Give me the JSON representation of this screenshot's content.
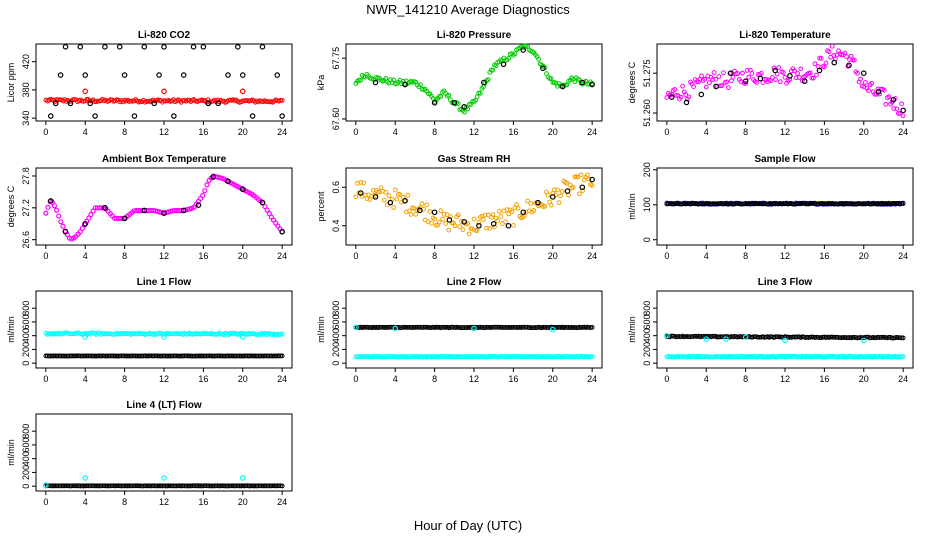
{
  "title": "NWR_141210  Average Diagnostics",
  "xlabel": "Hour of Day (UTC)",
  "x_ticks": [
    "0",
    "4",
    "8",
    "12",
    "16",
    "20",
    "24"
  ],
  "colors": {
    "black": "#000000",
    "red": "#ff0000",
    "green": "#00cc00",
    "magenta": "#ff00ff",
    "orange": "#f2a200",
    "blue": "#1a1aff",
    "cyan": "#00ffff"
  },
  "chart_data": [
    {
      "type": "scatter",
      "title": "Li-820 CO2",
      "ylabel": "Licor ppm",
      "y_ticks": [
        "340",
        "380",
        "420"
      ],
      "y_tick_values": [
        340,
        380,
        420
      ],
      "ylim": [
        336,
        445
      ],
      "series": [
        {
          "color": "red",
          "pattern": "dense",
          "x": [
            0,
            24
          ],
          "y": [
            365,
            364
          ],
          "jitter": 2
        },
        {
          "color": "black",
          "x": [
            0.5,
            1.0,
            1.5,
            2.0,
            2.5,
            3.5,
            4.0,
            4.5,
            5.0,
            6.0,
            7.5,
            8.0,
            9.0,
            10.0,
            11.0,
            11.5,
            12.0,
            13.0,
            14.0,
            15.0,
            16.0,
            16.5,
            17.5,
            18.5,
            19.5,
            20.0,
            21.0,
            22.0,
            23.5,
            24.0
          ],
          "y": [
            343,
            361,
            401,
            441,
            361,
            441,
            401,
            361,
            343,
            441,
            441,
            401,
            343,
            441,
            361,
            401,
            441,
            343,
            401,
            441,
            441,
            361,
            361,
            401,
            441,
            401,
            343,
            441,
            401,
            343
          ]
        },
        {
          "color": "red",
          "x": [
            4,
            12,
            20
          ],
          "y": [
            378,
            378,
            378
          ]
        }
      ]
    },
    {
      "type": "scatter",
      "title": "Li-820 Pressure",
      "ylabel": "kPa",
      "y_ticks": [
        "67.60",
        "67.75"
      ],
      "y_tick_values": [
        67.6,
        67.75
      ],
      "ylim": [
        67.595,
        67.785
      ],
      "series": [
        {
          "color": "green",
          "pattern": "dense",
          "x": [
            0,
            1,
            2,
            3,
            4,
            5,
            6,
            7,
            8,
            9,
            10,
            11,
            12,
            13,
            14,
            15,
            16,
            17,
            18,
            19,
            20,
            21,
            22,
            23,
            24
          ],
          "y": [
            67.69,
            67.71,
            67.7,
            67.695,
            67.69,
            67.69,
            67.69,
            67.675,
            67.645,
            67.665,
            67.64,
            67.62,
            67.64,
            67.68,
            67.73,
            67.745,
            67.76,
            67.78,
            67.77,
            67.73,
            67.69,
            67.68,
            67.7,
            67.69,
            67.685
          ],
          "jitter": 0.006
        },
        {
          "color": "black",
          "x": [
            2,
            5,
            8,
            10,
            11,
            13,
            15,
            17,
            19,
            21,
            23,
            24
          ],
          "y": [
            67.69,
            67.685,
            67.64,
            67.64,
            67.63,
            67.69,
            67.735,
            67.77,
            67.725,
            67.68,
            67.69,
            67.685
          ]
        }
      ]
    },
    {
      "type": "scatter",
      "title": "Li-820 Temperature",
      "ylabel": "degrees C",
      "y_ticks": [
        "51.260",
        "51.275"
      ],
      "y_tick_values": [
        51.26,
        51.275
      ],
      "ylim": [
        51.257,
        51.286
      ],
      "series": [
        {
          "color": "magenta",
          "pattern": "dense",
          "x": [
            0,
            1,
            2,
            3,
            4,
            5,
            6,
            7,
            8,
            9,
            10,
            11,
            12,
            13,
            14,
            15,
            16,
            17,
            18,
            19,
            20,
            21,
            22,
            23,
            24
          ],
          "y": [
            51.266,
            51.268,
            51.268,
            51.27,
            51.272,
            51.273,
            51.272,
            51.273,
            51.274,
            51.274,
            51.274,
            51.275,
            51.274,
            51.275,
            51.275,
            51.276,
            51.28,
            51.283,
            51.282,
            51.278,
            51.27,
            51.268,
            51.266,
            51.264,
            51.261
          ],
          "jitter": 0.003
        },
        {
          "color": "black",
          "x": [
            0.5,
            2,
            3.5,
            5,
            6.5,
            8,
            9.5,
            11,
            12.5,
            14,
            15.5,
            17,
            18.5,
            20,
            21.5,
            23,
            24
          ],
          "y": [
            51.266,
            51.264,
            51.267,
            51.27,
            51.275,
            51.272,
            51.273,
            51.276,
            51.274,
            51.272,
            51.276,
            51.279,
            51.278,
            51.275,
            51.268,
            51.265,
            51.261
          ]
        }
      ]
    },
    {
      "type": "scatter",
      "title": "Ambient Box Temperature",
      "ylabel": "degrees C",
      "y_ticks": [
        "26.6",
        "27.2",
        "27.8"
      ],
      "y_tick_values": [
        26.6,
        27.2,
        27.8
      ],
      "ylim": [
        26.5,
        27.95
      ],
      "series": [
        {
          "color": "magenta",
          "pattern": "curve",
          "x": [
            0,
            0.5,
            1,
            1.5,
            2,
            2.5,
            3,
            3.5,
            4,
            5,
            6,
            7,
            8,
            9,
            10,
            11,
            12,
            13,
            14,
            15,
            16,
            16.5,
            17,
            18,
            19,
            20,
            21,
            22,
            23,
            24
          ],
          "y": [
            27.1,
            27.35,
            27.2,
            26.95,
            26.75,
            26.6,
            26.65,
            26.75,
            26.9,
            27.2,
            27.2,
            27.0,
            27.0,
            27.15,
            27.15,
            27.15,
            27.1,
            27.15,
            27.15,
            27.2,
            27.45,
            27.7,
            27.8,
            27.75,
            27.65,
            27.55,
            27.45,
            27.3,
            27.0,
            26.75
          ]
        },
        {
          "color": "black",
          "x": [
            0.5,
            2,
            4,
            6,
            8,
            10,
            12,
            14,
            15.5,
            17,
            18.5,
            20,
            22,
            24
          ],
          "y": [
            27.33,
            26.75,
            26.9,
            27.2,
            27.0,
            27.15,
            27.1,
            27.15,
            27.25,
            27.78,
            27.7,
            27.55,
            27.3,
            26.75
          ]
        }
      ]
    },
    {
      "type": "scatter",
      "title": "Gas Stream RH",
      "ylabel": "percent",
      "y_ticks": [
        "0.4",
        "0.6"
      ],
      "y_tick_values": [
        0.4,
        0.6
      ],
      "ylim": [
        0.3,
        0.7
      ],
      "series": [
        {
          "color": "orange",
          "pattern": "dense",
          "x": [
            0,
            1,
            2,
            3,
            4,
            5,
            6,
            7,
            8,
            9,
            10,
            11,
            12,
            13,
            14,
            15,
            16,
            17,
            18,
            19,
            20,
            21,
            22,
            23,
            24
          ],
          "y": [
            0.6,
            0.57,
            0.56,
            0.55,
            0.54,
            0.52,
            0.5,
            0.48,
            0.45,
            0.42,
            0.42,
            0.41,
            0.4,
            0.42,
            0.43,
            0.44,
            0.45,
            0.48,
            0.5,
            0.52,
            0.55,
            0.58,
            0.6,
            0.62,
            0.63
          ],
          "jitter": 0.05
        },
        {
          "color": "black",
          "x": [
            0.5,
            2,
            3.5,
            5,
            6.5,
            8,
            9.5,
            11,
            12.5,
            14,
            15.5,
            17,
            18.5,
            20,
            21.5,
            23,
            24
          ],
          "y": [
            0.57,
            0.55,
            0.52,
            0.53,
            0.48,
            0.47,
            0.43,
            0.42,
            0.4,
            0.41,
            0.4,
            0.47,
            0.52,
            0.55,
            0.58,
            0.6,
            0.64
          ]
        }
      ]
    },
    {
      "type": "scatter",
      "title": "Sample Flow",
      "ylabel": "ml/min",
      "y_ticks": [
        "0",
        "100",
        "200"
      ],
      "y_tick_values": [
        0,
        100,
        200
      ],
      "ylim": [
        -15,
        205
      ],
      "series": [
        {
          "color": "blue",
          "pattern": "dense",
          "x": [
            0,
            24
          ],
          "y": [
            103,
            103
          ],
          "jitter": 2
        },
        {
          "color": "black",
          "pattern": "dense",
          "x": [
            0,
            24
          ],
          "y": [
            103,
            103
          ],
          "jitter": 1
        }
      ]
    },
    {
      "type": "scatter",
      "title": "Line 1 Flow",
      "ylabel": "ml/min",
      "y_ticks": [
        "0",
        "200",
        "400",
        "600",
        "800"
      ],
      "y_tick_values": [
        0,
        200,
        400,
        600,
        800
      ],
      "ylim": [
        -70,
        1050
      ],
      "series": [
        {
          "color": "cyan",
          "pattern": "dense",
          "x": [
            0,
            24
          ],
          "y": [
            430,
            425
          ],
          "jitter": 12
        },
        {
          "color": "black",
          "pattern": "dense",
          "x": [
            0,
            24
          ],
          "y": [
            105,
            105
          ],
          "jitter": 2
        },
        {
          "color": "cyan",
          "x": [
            4,
            12,
            20
          ],
          "y": [
            380,
            380,
            380
          ]
        }
      ]
    },
    {
      "type": "scatter",
      "title": "Line 2 Flow",
      "ylabel": "ml/min",
      "y_ticks": [
        "0",
        "200",
        "400",
        "600",
        "800"
      ],
      "y_tick_values": [
        0,
        200,
        400,
        600,
        800
      ],
      "ylim": [
        -70,
        1050
      ],
      "series": [
        {
          "color": "cyan",
          "pattern": "dense",
          "x": [
            0,
            24
          ],
          "y": [
            95,
            95
          ],
          "jitter": 4
        },
        {
          "color": "black",
          "pattern": "dense",
          "x": [
            0,
            24
          ],
          "y": [
            520,
            520
          ],
          "jitter": 4
        },
        {
          "color": "cyan",
          "x": [
            0,
            4,
            12,
            20
          ],
          "y": [
            520,
            505,
            505,
            490
          ]
        }
      ]
    },
    {
      "type": "scatter",
      "title": "Line 3 Flow",
      "ylabel": "ml/min",
      "y_ticks": [
        "0",
        "200",
        "400",
        "600",
        "800"
      ],
      "y_tick_values": [
        0,
        200,
        400,
        600,
        800
      ],
      "ylim": [
        -70,
        1050
      ],
      "series": [
        {
          "color": "cyan",
          "pattern": "dense",
          "x": [
            0,
            24
          ],
          "y": [
            95,
            95
          ],
          "jitter": 6
        },
        {
          "color": "black",
          "pattern": "dense",
          "x": [
            0,
            24
          ],
          "y": [
            390,
            370
          ],
          "jitter": 6
        },
        {
          "color": "cyan",
          "x": [
            0,
            4,
            6,
            8,
            12,
            20
          ],
          "y": [
            400,
            350,
            350,
            380,
            330,
            330
          ]
        }
      ]
    },
    {
      "type": "scatter",
      "title": "Line 4 (LT) Flow",
      "ylabel": "ml/min",
      "y_ticks": [
        "0",
        "200",
        "400",
        "600",
        "800"
      ],
      "y_tick_values": [
        0,
        200,
        400,
        600,
        800
      ],
      "ylim": [
        -70,
        1050
      ],
      "series": [
        {
          "color": "black",
          "pattern": "dense",
          "x": [
            0,
            24
          ],
          "y": [
            5,
            5
          ],
          "jitter": 2
        },
        {
          "color": "cyan",
          "x": [
            0,
            4,
            12,
            20
          ],
          "y": [
            15,
            120,
            120,
            120
          ]
        }
      ]
    }
  ]
}
